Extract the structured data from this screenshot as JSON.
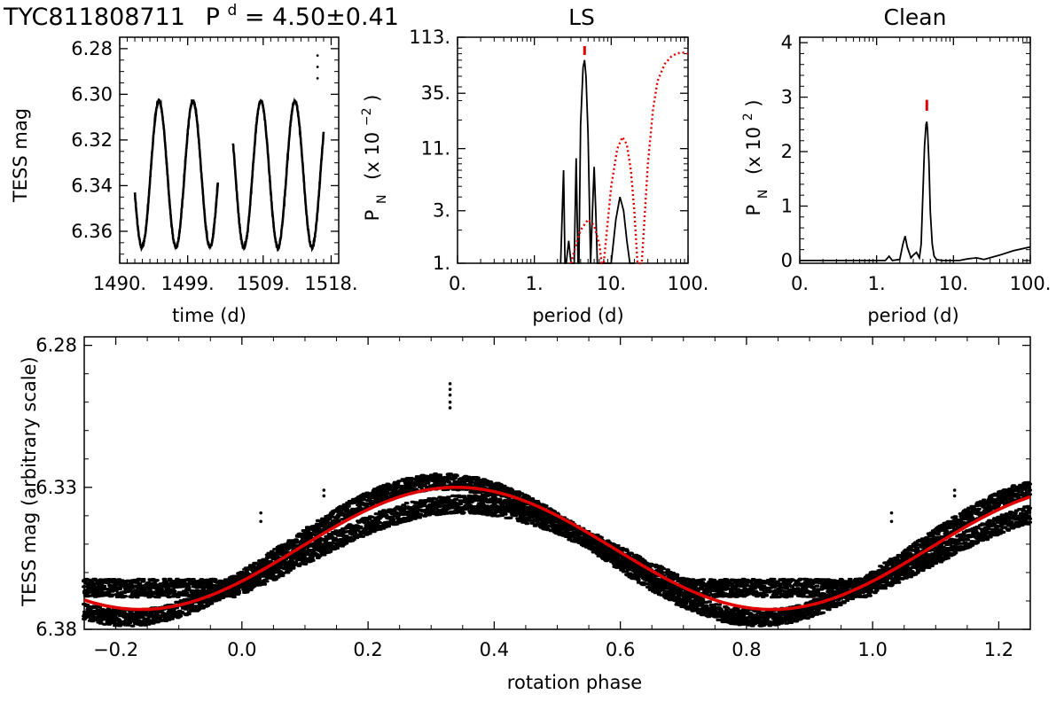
{
  "header": {
    "star_id": "TYC811808711",
    "period_symbol": "P",
    "period_superscript": "d",
    "period_text": "= 4.50±0.41"
  },
  "chart_data": [
    {
      "type": "scatter",
      "name": "light-curve",
      "title": "",
      "xlabel": "time (d)",
      "ylabel": "TESS mag",
      "xlim": [
        1490,
        1519
      ],
      "ylim": [
        6.374,
        6.275
      ],
      "y_inverted": true,
      "x_ticks": [
        1490,
        1499,
        1509,
        1518
      ],
      "x_tick_labels": [
        "1490.",
        "1499.",
        "1509.",
        "1518."
      ],
      "y_ticks": [
        6.28,
        6.3,
        6.32,
        6.34,
        6.36
      ],
      "y_tick_labels": [
        "6.28",
        "6.30",
        "6.32",
        "6.34",
        "6.36"
      ],
      "model": {
        "period_d": 4.5,
        "mean_mag": 6.335,
        "amplitude_mag": 0.032,
        "max_light_time": 1495.2
      },
      "segments": [
        {
          "start": 1492.0,
          "end": 1503.0
        },
        {
          "start": 1505.0,
          "end": 1517.0
        }
      ],
      "flare_points": [
        {
          "x": 1516.2,
          "y": 6.283
        },
        {
          "x": 1516.2,
          "y": 6.288
        },
        {
          "x": 1516.2,
          "y": 6.293
        }
      ]
    },
    {
      "type": "line",
      "name": "LS",
      "title": "LS",
      "xlabel": "period (d)",
      "ylabel": "P_N (x 10^-2)",
      "ylabel_main": "P",
      "ylabel_sub": "N",
      "ylabel_paren": "(x 10",
      "ylabel_exp": "−2",
      "ylabel_close": ")",
      "x_scale": "log",
      "y_scale": "log",
      "xlim": [
        0.1,
        100
      ],
      "ylim": [
        1,
        113
      ],
      "x_ticks": [
        0.1,
        1,
        10,
        100
      ],
      "x_tick_labels": [
        "0.",
        "1.",
        "10.",
        "100."
      ],
      "y_ticks": [
        1,
        3,
        11,
        35,
        113
      ],
      "y_tick_labels": [
        "1.",
        "3.",
        "11.",
        "35.",
        "113."
      ],
      "peak_period_d": 4.5,
      "series": [
        {
          "name": "",
          "color": "#000000",
          "style": "solid",
          "x": [
            2.2,
            2.4,
            2.5,
            2.6,
            2.8,
            3.0,
            3.3,
            3.5,
            3.7,
            3.8,
            4.0,
            4.3,
            4.5,
            4.7,
            5.0,
            5.4,
            5.7,
            6.0,
            6.3,
            6.6,
            7.0,
            8.0,
            9.0,
            10.0,
            11.5,
            13.0,
            14.5,
            16.0,
            17.5,
            19.0,
            20.0
          ],
          "y": [
            1.0,
            7.0,
            1.0,
            1.0,
            1.6,
            1.0,
            1.0,
            9.0,
            1.0,
            1.0,
            18.0,
            60.0,
            70.0,
            50.0,
            15.0,
            1.0,
            3.0,
            7.5,
            3.0,
            1.0,
            1.0,
            1.0,
            1.0,
            1.0,
            2.5,
            4.0,
            3.0,
            1.6,
            1.0,
            1.0,
            1.0
          ]
        },
        {
          "name": "",
          "color": "#e00000",
          "style": "dotted",
          "x": [
            3.0,
            3.5,
            4.0,
            5.0,
            6.0,
            7.0,
            7.5,
            8.0,
            10.0,
            12.0,
            14.0,
            16.0,
            18.0,
            20.0,
            22.0,
            25.0,
            30.0,
            35.0,
            40.0,
            50.0,
            60.0,
            70.0,
            80.0,
            90.0,
            100.0
          ],
          "y": [
            1.0,
            1.5,
            2.0,
            2.5,
            2.2,
            1.5,
            1.0,
            1.0,
            5.0,
            11.0,
            14.0,
            12.0,
            7.0,
            3.0,
            1.0,
            1.0,
            8.0,
            25.0,
            45.0,
            65.0,
            75.0,
            80.0,
            82.0,
            82.0,
            80.0
          ]
        }
      ]
    },
    {
      "type": "line",
      "name": "Clean",
      "title": "Clean",
      "xlabel": "period (d)",
      "ylabel": "P_N (x 10^2)",
      "ylabel_main": "P",
      "ylabel_sub": "N",
      "ylabel_paren": "(x 10",
      "ylabel_exp": "2",
      "ylabel_close": ")",
      "x_scale": "log",
      "xlim": [
        0.1,
        100
      ],
      "ylim": [
        -0.05,
        4.1
      ],
      "x_ticks": [
        0.1,
        1,
        10,
        100
      ],
      "x_tick_labels": [
        "0.",
        "1.",
        "10.",
        "100."
      ],
      "y_ticks": [
        0,
        1,
        2,
        3,
        4
      ],
      "y_tick_labels": [
        "0",
        "1",
        "2",
        "3",
        "4"
      ],
      "peak_period_d": 4.5,
      "series": [
        {
          "name": "",
          "color": "#000000",
          "style": "solid",
          "x": [
            0.1,
            0.5,
            1.0,
            1.3,
            1.45,
            1.6,
            2.0,
            2.2,
            2.35,
            2.5,
            2.8,
            3.0,
            3.3,
            3.6,
            3.8,
            4.0,
            4.2,
            4.4,
            4.5,
            4.6,
            4.8,
            5.0,
            5.3,
            5.6,
            6.0,
            7.0,
            9.0,
            12.0,
            15.0,
            20.0,
            25.0,
            40.0,
            60.0,
            100.0
          ],
          "y": [
            0.0,
            0.0,
            0.0,
            0.0,
            0.08,
            0.0,
            0.02,
            0.3,
            0.45,
            0.25,
            0.05,
            0.1,
            0.15,
            0.05,
            0.3,
            1.2,
            2.1,
            2.5,
            2.55,
            2.4,
            1.8,
            0.9,
            0.3,
            0.08,
            0.02,
            0.0,
            0.0,
            0.0,
            0.03,
            0.05,
            0.02,
            0.1,
            0.18,
            0.25
          ]
        }
      ]
    },
    {
      "type": "scatter",
      "name": "phased",
      "title": "",
      "xlabel": "rotation phase",
      "ylabel": "TESS mag (arbitrary scale)",
      "xlim": [
        -0.25,
        1.25
      ],
      "ylim": [
        6.38,
        6.277
      ],
      "y_inverted": true,
      "x_ticks": [
        -0.2,
        0.0,
        0.2,
        0.4,
        0.6,
        0.8,
        1.0,
        1.2
      ],
      "x_tick_labels": [
        "−0.2",
        "0.0",
        "0.2",
        "0.4",
        "0.6",
        "0.8",
        "1.0",
        "1.2"
      ],
      "y_ticks": [
        6.28,
        6.33,
        6.38
      ],
      "y_tick_labels": [
        "6.28",
        "6.33",
        "6.38"
      ],
      "fit": {
        "color": "#e00000",
        "mean_mag": 6.3515,
        "amplitude_mag": 0.0215,
        "max_phase": 0.34
      },
      "data_bands": [
        {
          "mean_mag": 6.354,
          "amplitude_mag": 0.018,
          "max_phase": 0.35,
          "scatter_mag": 0.002
        },
        {
          "mean_mag": 6.352,
          "amplitude_mag": 0.024,
          "max_phase": 0.32,
          "scatter_mag": 0.0018
        }
      ],
      "flare_points": [
        {
          "x": 0.33,
          "y": 6.2935
        },
        {
          "x": 0.33,
          "y": 6.2955
        },
        {
          "x": 0.33,
          "y": 6.2975
        },
        {
          "x": 0.33,
          "y": 6.3
        },
        {
          "x": 0.33,
          "y": 6.302
        },
        {
          "x": 0.03,
          "y": 6.339
        },
        {
          "x": 0.03,
          "y": 6.342
        },
        {
          "x": 0.13,
          "y": 6.331
        },
        {
          "x": 0.13,
          "y": 6.333
        },
        {
          "x": 1.03,
          "y": 6.339
        },
        {
          "x": 1.03,
          "y": 6.342
        },
        {
          "x": 1.13,
          "y": 6.331
        },
        {
          "x": 1.13,
          "y": 6.333
        }
      ]
    }
  ]
}
